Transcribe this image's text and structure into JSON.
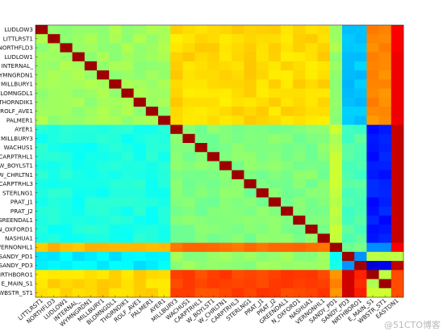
{
  "chart_data": {
    "type": "heatmap",
    "title": "",
    "xlabel": "",
    "ylabel": "",
    "colormap": "jet",
    "value_range": [
      0,
      1
    ],
    "grid": false,
    "colorbar": "none",
    "labels": [
      "LUDLOW3",
      "LITTLRST1",
      "NORTHFLD3",
      "LUDLOW1",
      "INTERNAL_",
      "WYMNGRDN1",
      "MILLBURY1",
      "BLOMNGDL1",
      "THORNDIK1",
      "ROLF_AVE1",
      "PALMER1",
      "AYER1",
      "MILLBURY3",
      "WACHUS1",
      "CARPTRHL1",
      "W_BOYLST1",
      "W_CHRLTN1",
      "CARPTRHL3",
      "STERLNG1",
      "PRAT_J1",
      "PRAT_J2",
      "GREENDAL1",
      "N_OXFORD1",
      "NASHUA1",
      "VERNONHL1",
      "SANDY_PD1",
      "SANDY_PD3",
      "NRTHBORO1",
      "E_MAIN_S1",
      "WBSTR_ST1"
    ],
    "x_labels": [
      "LITTLRST1",
      "NORTHFLD3",
      "LUDLOW1",
      "INTERNAL_",
      "WYMNGRDN1",
      "MILLBURY1",
      "BLOMNGDL1",
      "THORNDIK1",
      "ROLF_AVE1",
      "PALMER1",
      "AYER1",
      "MILLBURY3",
      "WACHUS1",
      "CARPTRHL1",
      "W_BOYLST1",
      "W_CHRLTN1",
      "CARPTRHL3",
      "STERLNG1",
      "PRAT_J1",
      "PRAT_J2",
      "GREENDAL1",
      "N_OXFORD1",
      "NASHUA1",
      "VERNONHL1",
      "SANDY_PD1",
      "SANDY_PD3",
      "NRTHBORO1",
      "E_MAIN_S1",
      "WBSTR_ST1",
      "EASTON1"
    ],
    "group_sizes": [
      11,
      13,
      1,
      2,
      3
    ],
    "block_values": [
      [
        0.53,
        0.66,
        0.53,
        0.32,
        0.74
      ],
      [
        0.4,
        0.5,
        0.56,
        0.45,
        0.15
      ],
      [
        0.69,
        0.77,
        0.76,
        0.48,
        0.26
      ],
      [
        0.36,
        0.52,
        0.4,
        0.26,
        0.1
      ],
      [
        0.66,
        0.81,
        0.74,
        0.83,
        0.56
      ]
    ],
    "diagonal_value": 0.97,
    "last_column_values": [
      0.88,
      0.88,
      0.88,
      0.89,
      0.89,
      0.89,
      0.89,
      0.89,
      0.89,
      0.89,
      0.89,
      0.93,
      0.93,
      0.93,
      0.93,
      0.93,
      0.93,
      0.93,
      0.93,
      0.93,
      0.93,
      0.93,
      0.93,
      0.93,
      0.88,
      0.94,
      0.94,
      0.8,
      0.8,
      0.8
    ],
    "special_cells": [
      {
        "row": "SANDY_PD1",
        "col": "NRTHBORO1",
        "value": 0.56
      },
      {
        "row": "SANDY_PD1",
        "col": "E_MAIN_S1",
        "value": 0.56
      },
      {
        "row": "SANDY_PD1",
        "col": "WBSTR_ST1",
        "value": 0.56
      },
      {
        "row": "NRTHBORO1",
        "col": "SANDY_PD1",
        "value": 0.92
      },
      {
        "row": "E_MAIN_S1",
        "col": "SANDY_PD1",
        "value": 0.92
      },
      {
        "row": "WBSTR_ST1",
        "col": "SANDY_PD1",
        "value": 0.92
      }
    ]
  },
  "watermark": "@51CTO博客"
}
